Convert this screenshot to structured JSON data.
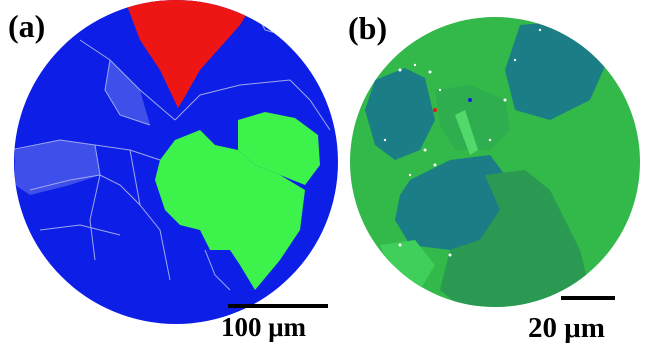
{
  "panels": [
    {
      "label": "(a)",
      "scale_label": "100 μm",
      "colors": {
        "matrix": "#0d1fe6",
        "red_grain": "#ee1515",
        "green_grain": "#3df24a",
        "boundary": "#cfd6f2"
      }
    },
    {
      "label": "(b)",
      "scale_label": "20 μm",
      "colors": {
        "matrix": "#33b84a",
        "teal_grain": "#1b7d86",
        "light_green": "#53d96b",
        "boundary": "#ffffff"
      }
    }
  ]
}
